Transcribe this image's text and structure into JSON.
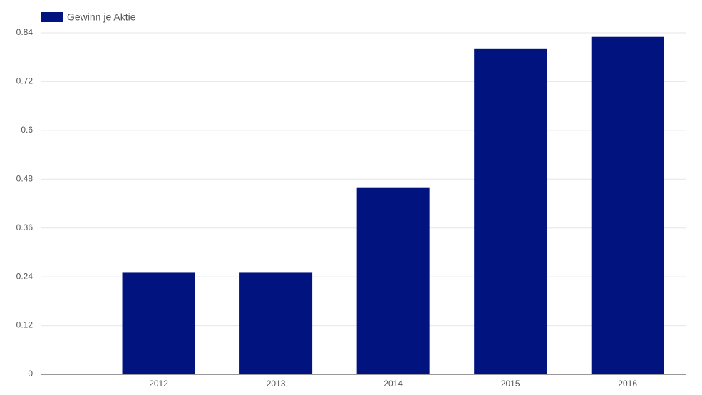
{
  "chart_data": {
    "type": "bar",
    "categories": [
      null,
      "2012",
      "2013",
      "2014",
      "2015",
      "2016"
    ],
    "series": [
      {
        "name": "Gewinn je Aktie",
        "color": "#00137f",
        "values": [
          null,
          0.25,
          0.25,
          0.46,
          0.8,
          0.83
        ]
      }
    ],
    "ylim": [
      0,
      0.84
    ],
    "yticks": [
      0,
      0.12,
      0.24,
      0.36,
      0.48,
      0.6,
      0.72,
      0.84
    ],
    "grid": true,
    "legend": "top-left"
  }
}
